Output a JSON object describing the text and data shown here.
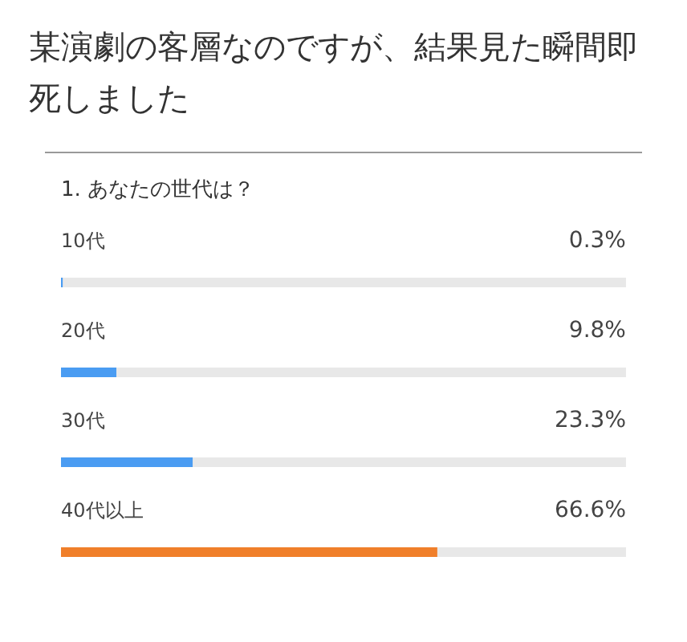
{
  "chart_data": {
    "type": "bar",
    "orientation": "horizontal",
    "title": "某演劇の客層なのですが、結果見た瞬間即死しました",
    "subtitle": "1. あなたの世代は？",
    "categories": [
      "10代",
      "20代",
      "30代",
      "40代以上"
    ],
    "values": [
      0.3,
      9.8,
      23.3,
      66.6
    ],
    "colors": [
      "#4a9cf2",
      "#4a9cf2",
      "#4a9cf2",
      "#f07f2a"
    ],
    "value_labels": [
      "0.3%",
      "9.8%",
      "23.3%",
      "66.6%"
    ],
    "xlim": [
      0,
      100
    ],
    "tick_labels": false
  }
}
